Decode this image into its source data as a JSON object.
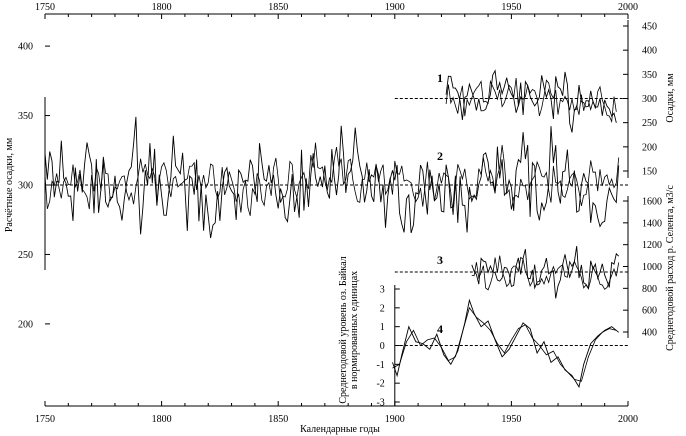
{
  "chart_data": {
    "type": "line",
    "top_axis": {
      "range": [
        1750,
        2000
      ],
      "ticks": [
        "1750",
        "1800",
        "1850",
        "1900",
        "1950",
        "2000"
      ]
    },
    "bottom_axis": {
      "range": [
        1750,
        2000
      ],
      "ticks": [
        "1750",
        "1800",
        "1850",
        "1900",
        "1950",
        "2000"
      ],
      "label": "Календарные годы"
    },
    "left_axis": {
      "label": "Расчётные осадки, мм",
      "ylim": [
        170,
        430
      ],
      "ticks": [
        "400",
        "350",
        "300",
        "250",
        "200"
      ],
      "tick_values": [
        400,
        350,
        300,
        250,
        200
      ]
    },
    "right_axis_precip": {
      "label": "Осадки, мм",
      "ylim": [
        125,
        450
      ],
      "ticks": [
        "450",
        "400",
        "350",
        "300",
        "250",
        "200",
        "150"
      ],
      "tick_values": [
        450,
        400,
        350,
        300,
        250,
        200,
        150
      ]
    },
    "right_axis_flow": {
      "label": "Среднегодовой расход р. Селенга, м3/с",
      "ylim": [
        300,
        1600
      ],
      "ticks": [
        "1600",
        "1400",
        "1200",
        "1000",
        "800",
        "600",
        "400"
      ],
      "tick_values": [
        1600,
        1400,
        1200,
        1000,
        800,
        600,
        400
      ]
    },
    "inner_axis_level": {
      "label": "Среднегодовой уровень оз. Байкал в нормированных единицах",
      "ylim": [
        -3,
        3
      ],
      "ticks": [
        "3",
        "2",
        "1",
        "0",
        "-1",
        "-2",
        "-3"
      ],
      "tick_values": [
        3,
        2,
        1,
        0,
        -1,
        -2,
        -3
      ]
    },
    "curve_numbers": [
      "1",
      "2",
      "3",
      "4"
    ],
    "series": [
      {
        "label_number": "1",
        "axis": "right_axis_precip",
        "x_range": [
          1922,
          1995
        ],
        "mean": 300,
        "amplitude": 60,
        "seed": 11
      },
      {
        "label_number": "1",
        "axis": "right_axis_precip",
        "x_range": [
          1922,
          1995
        ],
        "mean": 300,
        "amplitude": 45,
        "seed": 12
      },
      {
        "label_number": "2",
        "axis": "left_axis",
        "x_range": [
          1750,
          1996
        ],
        "mean": 300,
        "amplitude": 38,
        "seed": 21
      },
      {
        "label_number": "2",
        "axis": "left_axis",
        "x_range": [
          1750,
          1996
        ],
        "mean": 302,
        "amplitude": 22,
        "seed": 22
      },
      {
        "label_number": "3",
        "axis": "right_axis_flow",
        "x_range": [
          1933,
          1996
        ],
        "mean": 960,
        "amplitude": 230,
        "seed": 31
      },
      {
        "label_number": "3",
        "axis": "right_axis_flow",
        "x_range": [
          1933,
          1996
        ],
        "mean": 940,
        "amplitude": 170,
        "seed": 32
      },
      {
        "label_number": "4",
        "axis": "inner_axis_level",
        "x": [
          1899,
          1901,
          1903,
          1906,
          1909,
          1912,
          1915,
          1918,
          1921,
          1924,
          1927,
          1930,
          1932,
          1934,
          1937,
          1940,
          1943,
          1946,
          1949,
          1952,
          1955,
          1958,
          1961,
          1964,
          1967,
          1970,
          1973,
          1976,
          1979,
          1981,
          1984,
          1987,
          1990,
          1993,
          1996
        ],
        "y": [
          -0.9,
          -1.6,
          -0.5,
          1.0,
          0.2,
          0.1,
          -0.2,
          0.6,
          -0.5,
          -1.0,
          -0.3,
          1.2,
          2.4,
          1.7,
          1.0,
          1.3,
          0.3,
          -0.6,
          -0.2,
          0.5,
          1.2,
          0.9,
          -0.4,
          0.2,
          -0.9,
          -0.6,
          -1.3,
          -1.6,
          -2.2,
          -1.0,
          0.1,
          0.5,
          0.8,
          1.0,
          0.7
        ]
      },
      {
        "label_number": "4",
        "axis": "inner_axis_level",
        "x": [
          1899,
          1902,
          1905,
          1908,
          1911,
          1914,
          1917,
          1920,
          1923,
          1926,
          1929,
          1932,
          1935,
          1938,
          1941,
          1944,
          1947,
          1950,
          1953,
          1956,
          1959,
          1962,
          1965,
          1968,
          1971,
          1974,
          1977,
          1980,
          1983,
          1986,
          1989,
          1992,
          1995
        ],
        "y": [
          -1.2,
          -1.0,
          0.2,
          0.8,
          0.0,
          0.3,
          0.4,
          -0.1,
          -0.8,
          -0.6,
          0.7,
          2.0,
          1.5,
          1.2,
          0.8,
          0.1,
          -0.4,
          0.3,
          0.9,
          1.1,
          0.4,
          0.0,
          -0.5,
          -0.3,
          -1.0,
          -1.4,
          -1.8,
          -1.9,
          -0.6,
          0.3,
          0.7,
          0.9,
          0.8
        ]
      }
    ],
    "reference_lines": [
      {
        "label_number": "1",
        "axis": "right_axis_precip",
        "value": 300,
        "x_range": [
          1900,
          2000
        ]
      },
      {
        "label_number": "2",
        "axis": "left_axis",
        "value": 300,
        "x_range": [
          1750,
          2000
        ]
      },
      {
        "label_number": "3",
        "axis": "right_axis_flow",
        "value": 950,
        "x_range": [
          1900,
          2000
        ]
      },
      {
        "label_number": "4",
        "axis": "inner_axis_level",
        "value": 0,
        "x_range": [
          1900,
          2000
        ]
      }
    ],
    "grid": false
  }
}
